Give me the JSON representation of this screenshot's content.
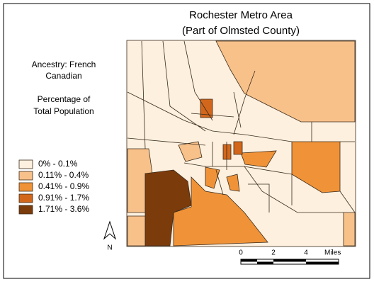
{
  "title": [
    "Rochester Metro Area",
    "(Part of Olmsted County)"
  ],
  "sidebar": {
    "subject": [
      "Ancestry: French",
      "Canadian"
    ],
    "measure": [
      "Percentage of",
      "Total Population"
    ]
  },
  "legend": [
    {
      "label": "0% - 0.1%",
      "color": "#fdf0df"
    },
    {
      "label": "0.11% - 0.4%",
      "color": "#f8c18a"
    },
    {
      "label": "0.41% - 0.9%",
      "color": "#f09338"
    },
    {
      "label": "0.91% - 1.7%",
      "color": "#d2671c"
    },
    {
      "label": "1.71% - 3.6%",
      "color": "#7b3b0b"
    }
  ],
  "scale_bar": {
    "labels": [
      "0",
      "2",
      "4"
    ],
    "unit": "Miles"
  },
  "north_arrow": "N"
}
